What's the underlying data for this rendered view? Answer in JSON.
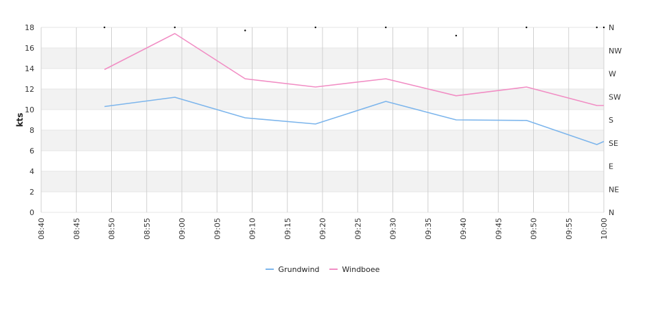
{
  "chart_data": {
    "type": "line",
    "ylabel": "kts",
    "xlabel": "",
    "title": "",
    "ylim": [
      0,
      18
    ],
    "yticks": [
      0,
      2,
      4,
      6,
      8,
      10,
      12,
      14,
      16,
      18
    ],
    "x_range": [
      "08:40",
      "10:00"
    ],
    "xticks": [
      "08:40",
      "08:45",
      "08:50",
      "08:55",
      "09:00",
      "09:05",
      "09:10",
      "09:15",
      "09:20",
      "09:25",
      "09:30",
      "09:35",
      "09:40",
      "09:45",
      "09:50",
      "09:55",
      "10:00"
    ],
    "right_axis_labels": [
      "N",
      "NE",
      "E",
      "SE",
      "S",
      "SW",
      "W",
      "NW",
      "N"
    ],
    "grid": true,
    "legend_position": "bottom",
    "series": [
      {
        "name": "Grundwind",
        "color": "#7cb5ec",
        "x": [
          "08:49",
          "08:59",
          "09:09",
          "09:19",
          "09:29",
          "09:39",
          "09:49",
          "09:59",
          "10:00"
        ],
        "values": [
          10.3,
          11.2,
          9.2,
          8.6,
          10.8,
          9.0,
          8.95,
          6.6,
          6.9
        ]
      },
      {
        "name": "Windboee",
        "color": "#f18dc4",
        "x": [
          "08:49",
          "08:59",
          "09:09",
          "09:19",
          "09:29",
          "09:39",
          "09:49",
          "09:59",
          "10:00"
        ],
        "values": [
          13.9,
          17.4,
          13.0,
          12.2,
          13.0,
          11.35,
          12.2,
          10.4,
          10.4
        ]
      }
    ],
    "direction_markers": {
      "x": [
        "08:49",
        "08:59",
        "09:09",
        "09:19",
        "09:29",
        "09:39",
        "09:49",
        "09:59",
        "10:00"
      ],
      "values": [
        18,
        18,
        17.7,
        18,
        18,
        17.2,
        18,
        18,
        18
      ]
    }
  }
}
